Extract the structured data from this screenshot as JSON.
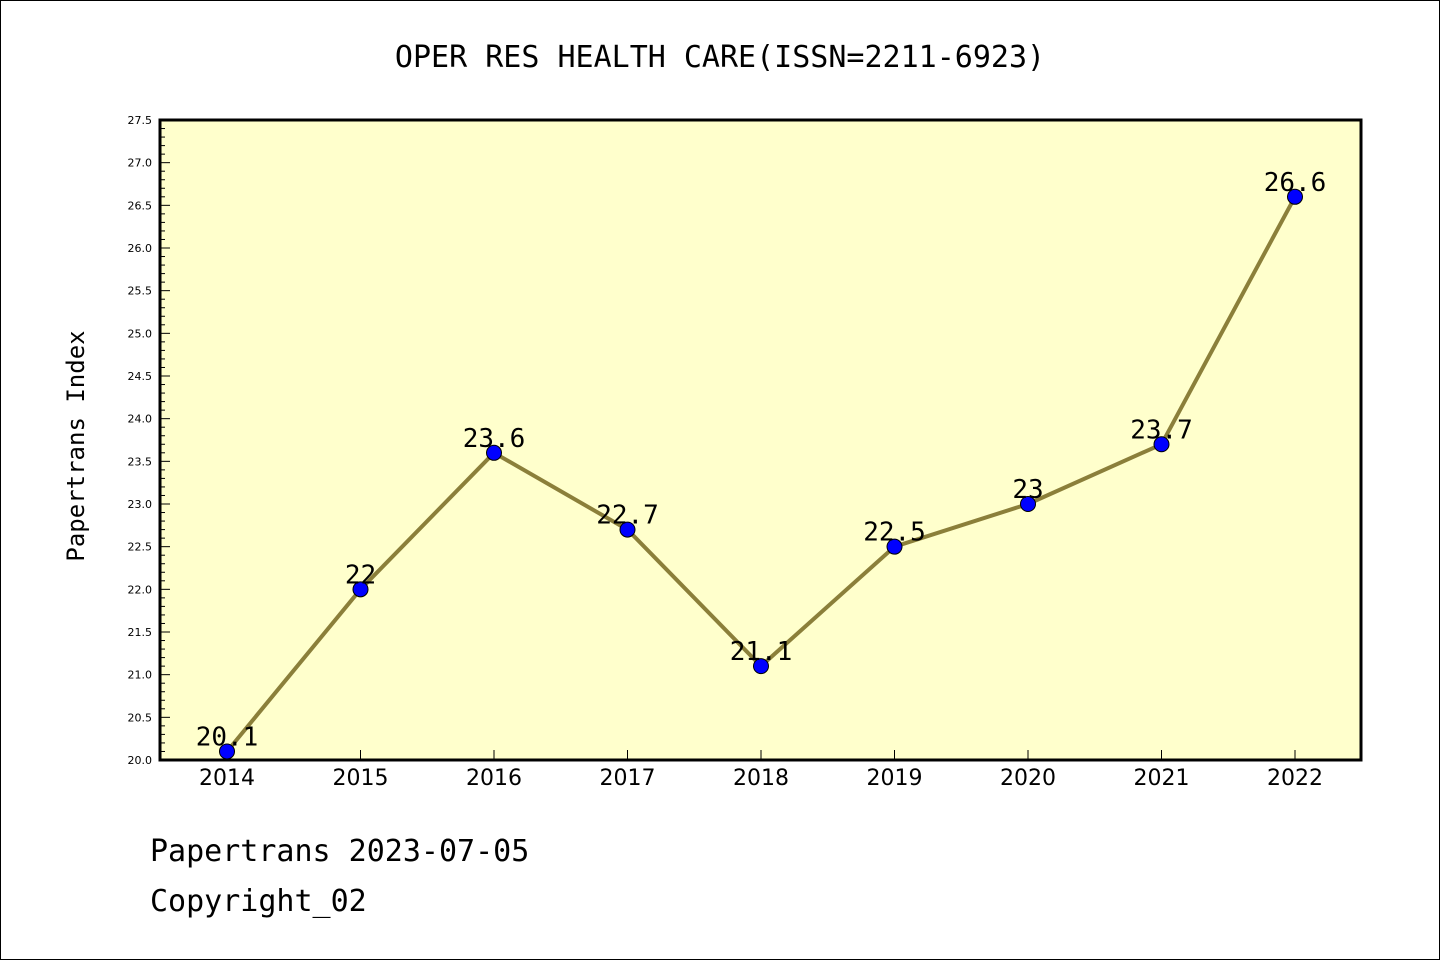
{
  "chart_data": {
    "type": "line",
    "title": "OPER RES HEALTH CARE(ISSN=2211-6923)",
    "xlabel": "",
    "ylabel": "Papertrans Index",
    "categories": [
      "2014",
      "2015",
      "2016",
      "2017",
      "2018",
      "2019",
      "2020",
      "2021",
      "2022"
    ],
    "series": [
      {
        "values": [
          20.1,
          22,
          23.6,
          22.7,
          21.1,
          22.5,
          23,
          23.7,
          26.6
        ],
        "labels": [
          "20.1",
          "22",
          "23.6",
          "22.7",
          "21.1",
          "22.5",
          "23",
          "23.7",
          "26.6"
        ]
      }
    ],
    "ylim": [
      20.0,
      27.5
    ],
    "yticks": [
      "20.0",
      "20.5",
      "21.0",
      "21.5",
      "22.0",
      "22.5",
      "23.0",
      "23.5",
      "24.0",
      "24.5",
      "25.0",
      "25.5",
      "26.0",
      "26.5",
      "27.0",
      "27.5"
    ],
    "grid": false,
    "legend": "none",
    "colors": {
      "plot_background": "#ffffcc",
      "line": "#8b7f3a",
      "marker": "#0000ff"
    }
  },
  "footer": {
    "line1": "Papertrans 2023-07-05",
    "line2": "Copyright_02"
  }
}
